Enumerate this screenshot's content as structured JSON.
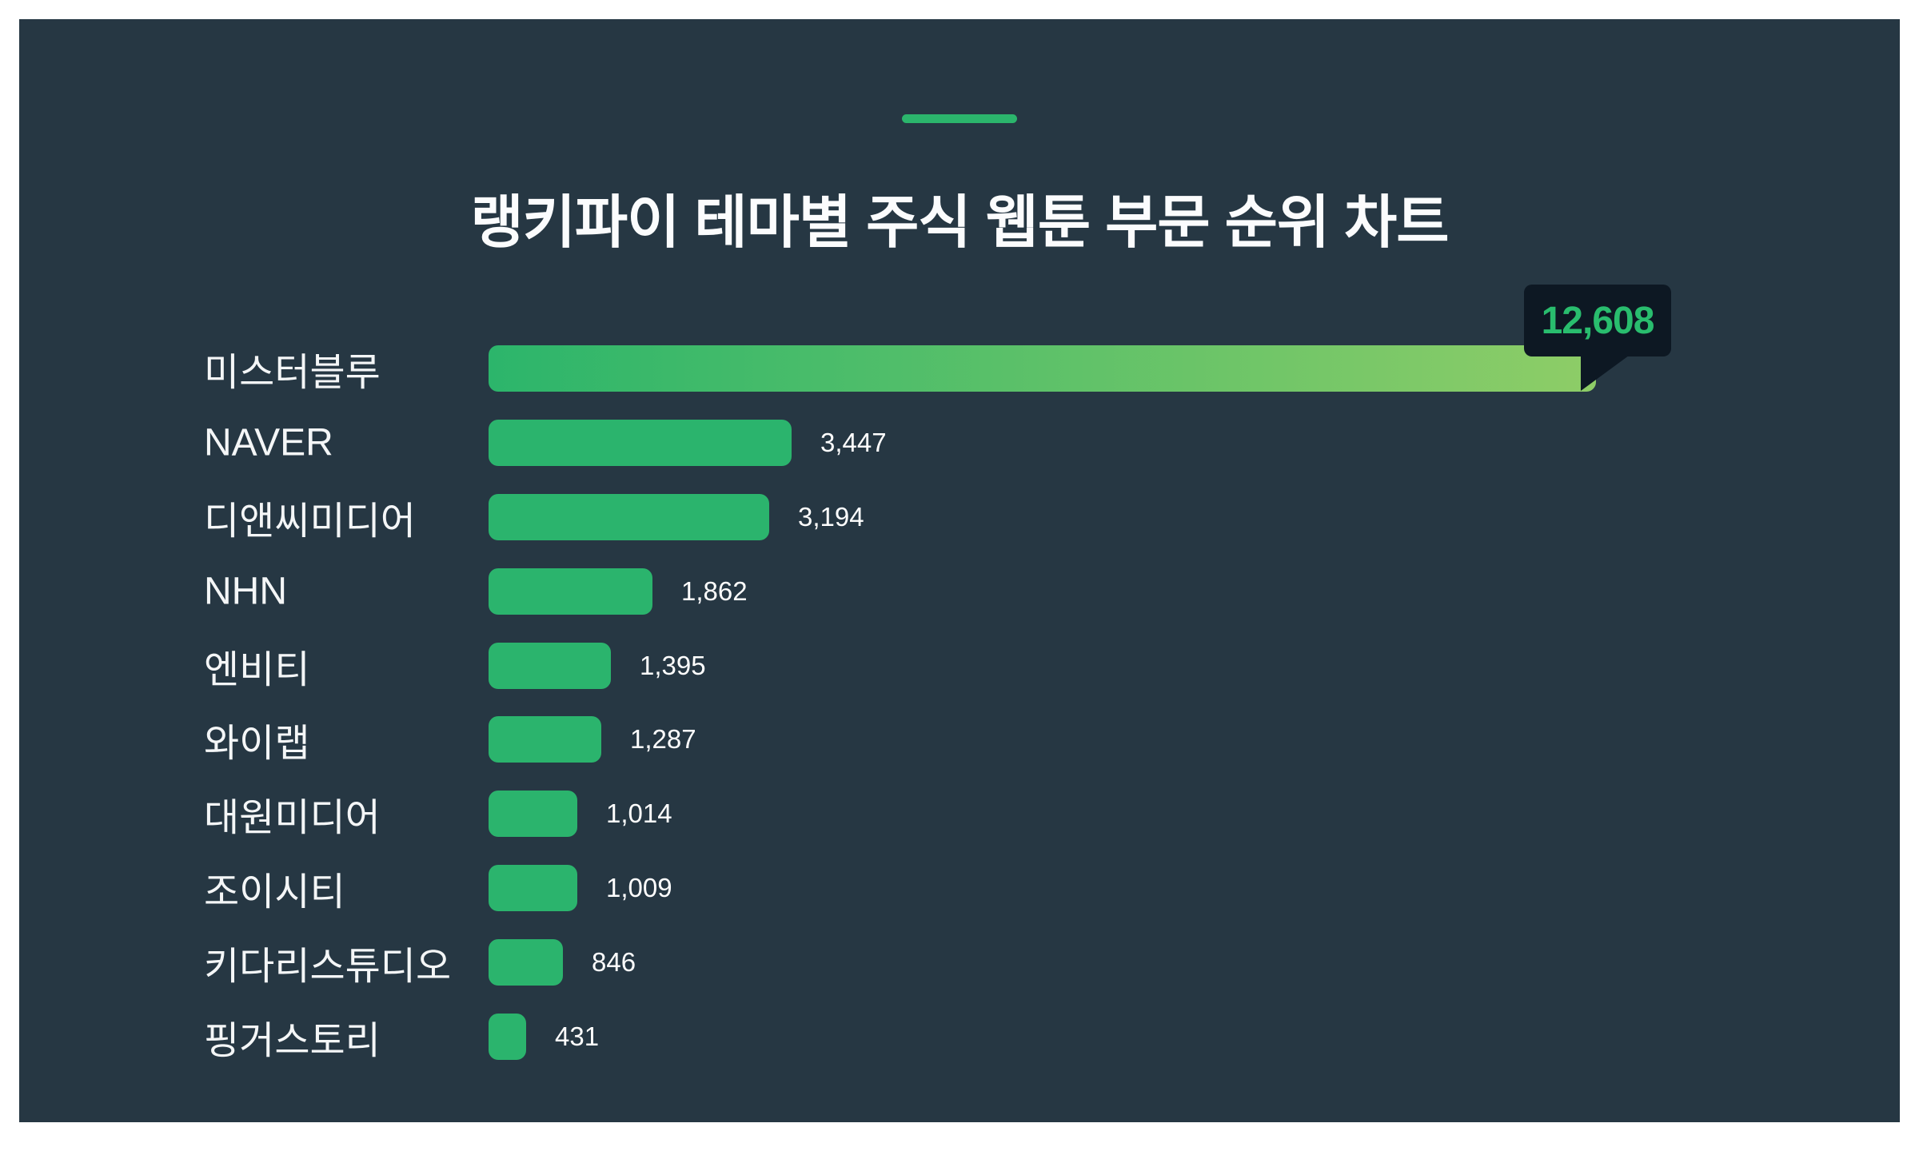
{
  "header": {
    "title": "랭키파이 테마별 주식 웹툰 부문 순위 차트"
  },
  "colors": {
    "page_background": "#ffffff",
    "panel_background": "#263743",
    "accent_green": "#2bb56c",
    "bar_green": "#2bb46d",
    "highlight_bar_gradient_start": "#2cb56b",
    "highlight_bar_gradient_end": "#8ecd67",
    "tooltip_background": "#0d1823",
    "tooltip_text": "#29bd6e",
    "label_text": "#f4f6f7",
    "value_text": "#ffffff"
  },
  "chart_data": {
    "type": "bar",
    "orientation": "horizontal",
    "title": "랭키파이 테마별 주식 웹툰 부문 순위 차트",
    "categories": [
      "미스터블루",
      "NAVER",
      "디앤씨미디어",
      "NHN",
      "엔비티",
      "와이랩",
      "대원미디어",
      "조이시티",
      "키다리스튜디오",
      "핑거스토리"
    ],
    "values": [
      12608,
      3447,
      3194,
      1862,
      1395,
      1287,
      1014,
      1009,
      846,
      431
    ],
    "value_labels": [
      "12,608",
      "3,447",
      "3,194",
      "1,862",
      "1,395",
      "1,287",
      "1,014",
      "1,009",
      "846",
      "431"
    ],
    "xlim": [
      0,
      12608
    ],
    "highlight_index": 0,
    "tooltip": {
      "value_label": "12,608"
    },
    "xlabel": "",
    "ylabel": "",
    "legend": false,
    "grid": false
  }
}
